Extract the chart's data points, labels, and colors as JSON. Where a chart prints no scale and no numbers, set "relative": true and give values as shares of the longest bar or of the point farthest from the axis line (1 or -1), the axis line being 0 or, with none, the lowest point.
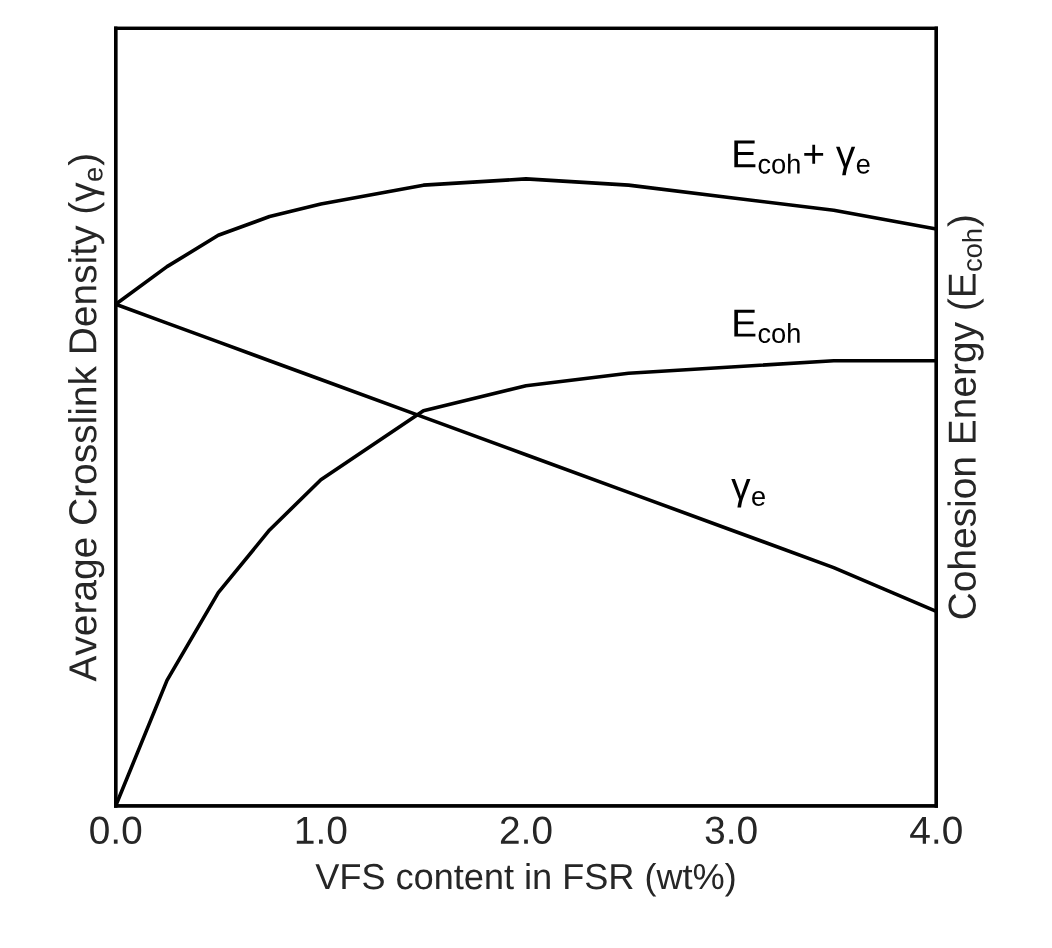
{
  "chart_data": {
    "type": "line",
    "relative": true,
    "xlabel": "VFS content in FSR (wt%)",
    "ylabel": "Average Crosslink Density (γ$_{e}$)",
    "y2label": "Cohesion Energy (E$_{coh}$)",
    "xlim": [
      0,
      4
    ],
    "xticks": [
      {
        "value": 0,
        "label": "0.0"
      },
      {
        "value": 1,
        "label": "1.0"
      },
      {
        "value": 2,
        "label": "2.0"
      },
      {
        "value": 3,
        "label": "3.0"
      },
      {
        "value": 4,
        "label": "4.0"
      }
    ],
    "x": [
      0,
      0.25,
      0.5,
      0.75,
      1,
      1.5,
      2,
      2.5,
      3,
      3.5,
      4
    ],
    "series": [
      {
        "name": "E$_{coh}$+ γ$_{e}$",
        "color": "#000000",
        "values": [
          0.8,
          0.86,
          0.91,
          0.94,
          0.96,
          0.99,
          1.0,
          0.99,
          0.97,
          0.95,
          0.92
        ]
      },
      {
        "name": "E$_{coh}$",
        "color": "#000000",
        "values": [
          0,
          0.2,
          0.34,
          0.44,
          0.52,
          0.63,
          0.67,
          0.69,
          0.7,
          0.71,
          0.71
        ]
      },
      {
        "name": "γ$_{e}$",
        "color": "#000000",
        "values": [
          0.8,
          0.77,
          0.74,
          0.71,
          0.68,
          0.62,
          0.56,
          0.5,
          0.44,
          0.38,
          0.31
        ]
      }
    ],
    "tick_labels": "x",
    "grid": false,
    "legend": false,
    "marker": "none",
    "line_style": "solid"
  }
}
